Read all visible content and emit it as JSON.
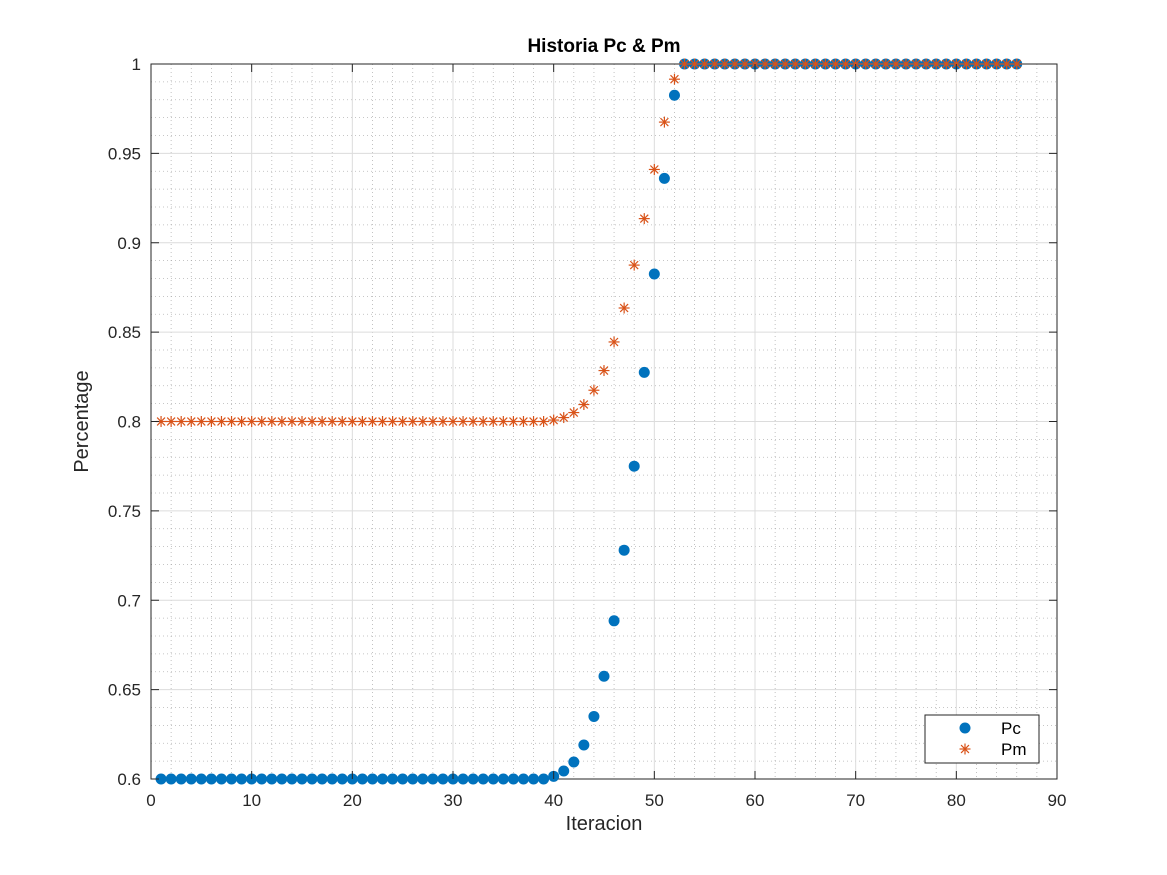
{
  "chart_data": {
    "type": "scatter",
    "title": "Historia Pc & Pm",
    "xlabel": "Iteracion",
    "ylabel": "Percentage",
    "xlim": [
      0,
      90
    ],
    "ylim": [
      0.6,
      1
    ],
    "xticks": [
      0,
      10,
      20,
      30,
      40,
      50,
      60,
      70,
      80,
      90
    ],
    "xtick_labels": [
      "0",
      "10",
      "20",
      "30",
      "40",
      "50",
      "60",
      "70",
      "80",
      "90"
    ],
    "yticks": [
      0.6,
      0.65,
      0.7,
      0.75,
      0.8,
      0.85,
      0.9,
      0.95,
      1
    ],
    "ytick_labels": [
      "0.6",
      "0.65",
      "0.7",
      "0.75",
      "0.8",
      "0.85",
      "0.9",
      "0.95",
      "1"
    ],
    "grid": true,
    "minor_grid": true,
    "legend_position": "bottom-right",
    "x": [
      1,
      2,
      3,
      4,
      5,
      6,
      7,
      8,
      9,
      10,
      11,
      12,
      13,
      14,
      15,
      16,
      17,
      18,
      19,
      20,
      21,
      22,
      23,
      24,
      25,
      26,
      27,
      28,
      29,
      30,
      31,
      32,
      33,
      34,
      35,
      36,
      37,
      38,
      39,
      40,
      41,
      42,
      43,
      44,
      45,
      46,
      47,
      48,
      49,
      50,
      51,
      52,
      53,
      54,
      55,
      56,
      57,
      58,
      59,
      60,
      61,
      62,
      63,
      64,
      65,
      66,
      67,
      68,
      69,
      70,
      71,
      72,
      73,
      74,
      75,
      76,
      77,
      78,
      79,
      80,
      81,
      82,
      83,
      84,
      85,
      86
    ],
    "series": [
      {
        "name": "Pc",
        "marker": "circle",
        "color": "#0072BD",
        "values": [
          0.6,
          0.6,
          0.6,
          0.6,
          0.6,
          0.6,
          0.6,
          0.6,
          0.6,
          0.6,
          0.6,
          0.6,
          0.6,
          0.6,
          0.6,
          0.6,
          0.6,
          0.6,
          0.6,
          0.6,
          0.6,
          0.6,
          0.6,
          0.6,
          0.6,
          0.6,
          0.6,
          0.6,
          0.6,
          0.6,
          0.6,
          0.6,
          0.6,
          0.6,
          0.6,
          0.6,
          0.6,
          0.6,
          0.6,
          0.6015,
          0.6045,
          0.6095,
          0.619,
          0.635,
          0.6575,
          0.6885,
          0.728,
          0.775,
          0.8275,
          0.8825,
          0.936,
          0.9825,
          1,
          1,
          1,
          1,
          1,
          1,
          1,
          1,
          1,
          1,
          1,
          1,
          1,
          1,
          1,
          1,
          1,
          1,
          1,
          1,
          1,
          1,
          1,
          1,
          1,
          1,
          1,
          1,
          1,
          1,
          1,
          1,
          1,
          1
        ]
      },
      {
        "name": "Pm",
        "marker": "asterisk",
        "color": "#D95319",
        "values": [
          0.8,
          0.8,
          0.8,
          0.8,
          0.8,
          0.8,
          0.8,
          0.8,
          0.8,
          0.8,
          0.8,
          0.8,
          0.8,
          0.8,
          0.8,
          0.8,
          0.8,
          0.8,
          0.8,
          0.8,
          0.8,
          0.8,
          0.8,
          0.8,
          0.8,
          0.8,
          0.8,
          0.8,
          0.8,
          0.8,
          0.8,
          0.8,
          0.8,
          0.8,
          0.8,
          0.8,
          0.8,
          0.8,
          0.8,
          0.8008,
          0.8022,
          0.805,
          0.8095,
          0.8175,
          0.8285,
          0.8445,
          0.8635,
          0.8875,
          0.9135,
          0.941,
          0.9675,
          0.9915,
          1,
          1,
          1,
          1,
          1,
          1,
          1,
          1,
          1,
          1,
          1,
          1,
          1,
          1,
          1,
          1,
          1,
          1,
          1,
          1,
          1,
          1,
          1,
          1,
          1,
          1,
          1,
          1,
          1,
          1,
          1,
          1,
          1,
          1
        ]
      }
    ]
  }
}
